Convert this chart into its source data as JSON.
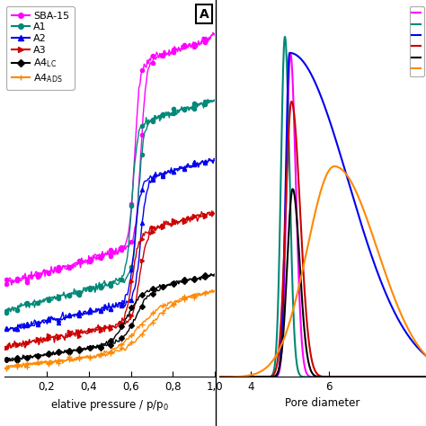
{
  "colors": {
    "SBA-15": "#ff00ff",
    "A1": "#008878",
    "A2": "#0000ee",
    "A3": "#cc0000",
    "A4LC": "#000000",
    "A4ADS": "#ff8800"
  },
  "xlabel_left": "elative pressure / p/p₀",
  "xlabel_right": "Pore diameter",
  "xtick_labels_left": [
    "0,2",
    "0,4",
    "0,6",
    "0,8",
    "1,0"
  ],
  "xtick_labels_right": [
    "4",
    "6"
  ],
  "background_color": "#ffffff"
}
